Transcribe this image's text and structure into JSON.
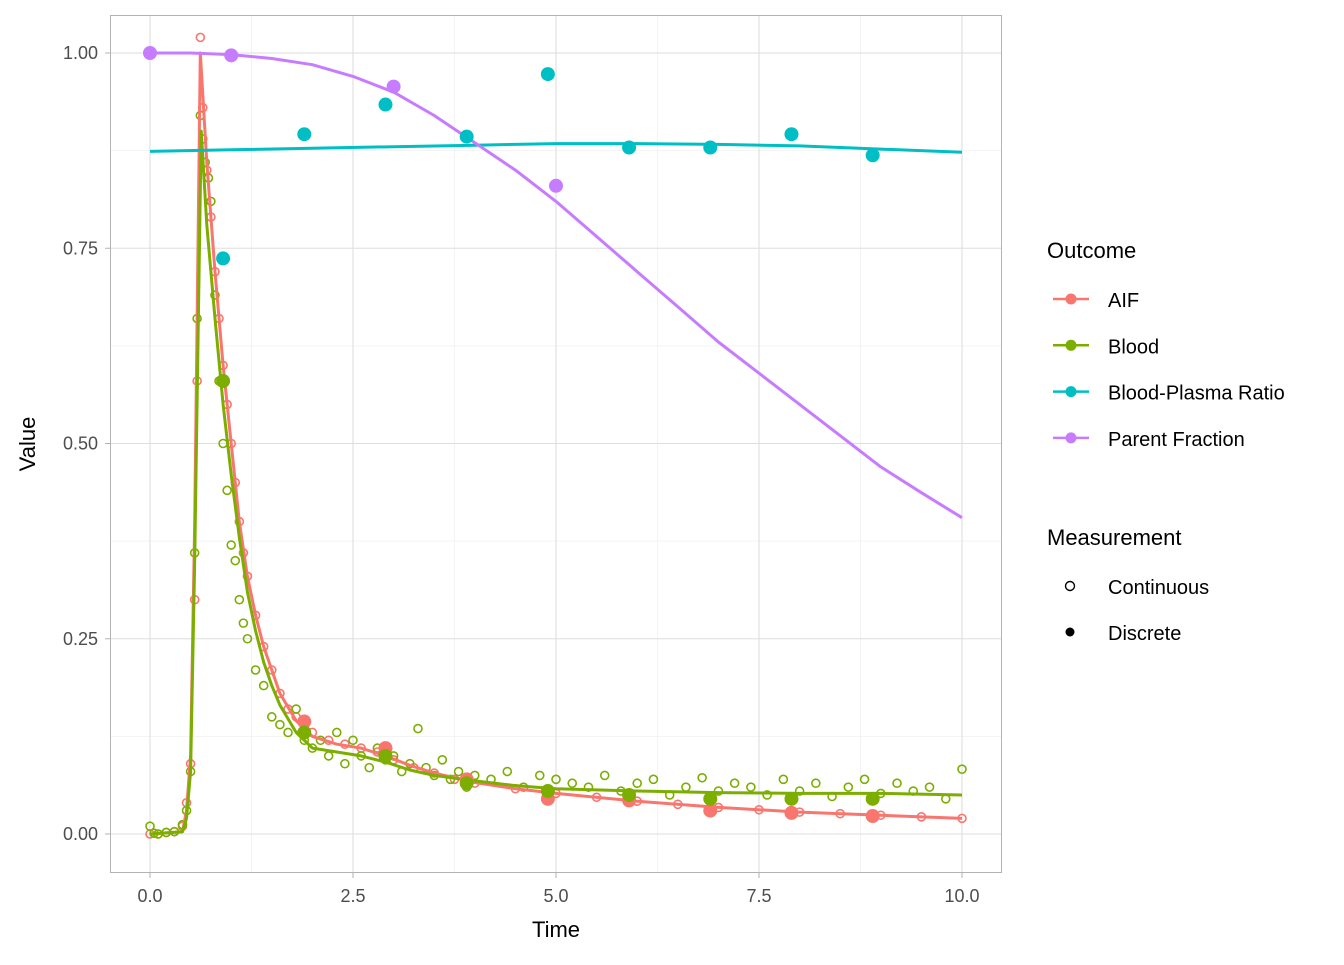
{
  "chart_data": {
    "type": "scatter",
    "xlabel": "Time",
    "ylabel": "Value",
    "xlim": [
      -0.5,
      10.5
    ],
    "ylim": [
      -0.05,
      1.05
    ],
    "grid": true,
    "x_ticks": [
      0,
      2.5,
      5,
      7.5,
      10
    ],
    "x_tick_labels": [
      "0.0",
      "2.5",
      "5.0",
      "7.5",
      "10.0"
    ],
    "y_ticks": [
      0,
      0.25,
      0.5,
      0.75,
      1
    ],
    "y_tick_labels": [
      "0.00",
      "0.25",
      "0.50",
      "0.75",
      "1.00"
    ],
    "legend_position": "right",
    "legend": {
      "outcome_title": "Outcome",
      "outcome_items": [
        "AIF",
        "Blood",
        "Blood-Plasma Ratio",
        "Parent Fraction"
      ],
      "measurement_title": "Measurement",
      "measurement_items": [
        "Continuous",
        "Discrete"
      ]
    },
    "colors": {
      "AIF": "#F8766D",
      "Blood": "#7CAE00",
      "Blood-Plasma Ratio": "#00BFC4",
      "Parent Fraction": "#C77CFF"
    },
    "series": [
      {
        "name": "AIF",
        "measurement": "Continuous",
        "x": [
          0,
          0.1,
          0.2,
          0.3,
          0.4,
          0.45,
          0.5,
          0.55,
          0.58,
          0.62,
          0.65,
          0.7,
          0.75,
          0.8,
          0.85,
          0.9,
          0.95,
          1.0,
          1.05,
          1.1,
          1.15,
          1.2,
          1.3,
          1.4,
          1.5,
          1.6,
          1.7,
          1.8,
          2.0,
          2.2,
          2.4,
          2.6,
          2.8,
          3.0,
          3.25,
          3.5,
          3.75,
          4,
          4.5,
          5,
          5.5,
          6,
          6.5,
          7,
          7.5,
          8,
          8.5,
          9,
          9.5,
          10
        ],
        "y": [
          0,
          0,
          0.002,
          0.003,
          0.01,
          0.04,
          0.09,
          0.3,
          0.58,
          1.02,
          0.93,
          0.85,
          0.79,
          0.72,
          0.66,
          0.6,
          0.55,
          0.5,
          0.45,
          0.4,
          0.36,
          0.33,
          0.28,
          0.24,
          0.21,
          0.18,
          0.16,
          0.15,
          0.13,
          0.12,
          0.115,
          0.11,
          0.105,
          0.095,
          0.085,
          0.078,
          0.07,
          0.065,
          0.058,
          0.052,
          0.047,
          0.042,
          0.038,
          0.034,
          0.031,
          0.028,
          0.026,
          0.024,
          0.022,
          0.02
        ]
      },
      {
        "name": "Blood",
        "measurement": "Continuous",
        "x": [
          0,
          0.05,
          0.1,
          0.2,
          0.3,
          0.4,
          0.45,
          0.5,
          0.55,
          0.58,
          0.62,
          0.65,
          0.68,
          0.72,
          0.75,
          0.8,
          0.85,
          0.9,
          0.95,
          1.0,
          1.05,
          1.1,
          1.15,
          1.2,
          1.3,
          1.4,
          1.5,
          1.6,
          1.7,
          1.8,
          1.9,
          2.0,
          2.1,
          2.2,
          2.3,
          2.4,
          2.5,
          2.6,
          2.7,
          2.8,
          2.9,
          3.0,
          3.1,
          3.2,
          3.3,
          3.4,
          3.5,
          3.6,
          3.7,
          3.8,
          3.9,
          4.0,
          4.2,
          4.4,
          4.6,
          4.8,
          5.0,
          5.2,
          5.4,
          5.6,
          5.8,
          6.0,
          6.2,
          6.4,
          6.6,
          6.8,
          7.0,
          7.2,
          7.4,
          7.6,
          7.8,
          8.0,
          8.2,
          8.4,
          8.6,
          8.8,
          9.0,
          9.2,
          9.4,
          9.6,
          9.8,
          10.0
        ],
        "y": [
          0.01,
          0.001,
          0.0,
          0.002,
          0.003,
          0.012,
          0.03,
          0.08,
          0.36,
          0.66,
          0.92,
          0.89,
          0.86,
          0.84,
          0.81,
          0.69,
          0.58,
          0.5,
          0.44,
          0.37,
          0.35,
          0.3,
          0.27,
          0.25,
          0.21,
          0.19,
          0.15,
          0.14,
          0.13,
          0.16,
          0.12,
          0.11,
          0.12,
          0.1,
          0.13,
          0.09,
          0.12,
          0.1,
          0.085,
          0.11,
          0.095,
          0.1,
          0.08,
          0.09,
          0.135,
          0.085,
          0.075,
          0.095,
          0.07,
          0.08,
          0.06,
          0.075,
          0.07,
          0.08,
          0.06,
          0.075,
          0.07,
          0.065,
          0.06,
          0.075,
          0.055,
          0.065,
          0.07,
          0.05,
          0.06,
          0.072,
          0.055,
          0.065,
          0.06,
          0.05,
          0.07,
          0.055,
          0.065,
          0.048,
          0.06,
          0.07,
          0.052,
          0.065,
          0.055,
          0.06,
          0.045,
          0.083
        ]
      },
      {
        "name": "AIF",
        "measurement": "Discrete",
        "x": [
          1.9,
          2.9,
          3.9,
          4.9,
          5.9,
          6.9,
          7.9,
          8.9
        ],
        "y": [
          0.144,
          0.11,
          0.07,
          0.045,
          0.043,
          0.03,
          0.027,
          0.023
        ]
      },
      {
        "name": "Blood",
        "measurement": "Discrete",
        "x": [
          0.9,
          1.9,
          2.9,
          3.9,
          4.9,
          5.9,
          6.9,
          7.9,
          8.9
        ],
        "y": [
          0.58,
          0.13,
          0.1,
          0.065,
          0.055,
          0.05,
          0.045,
          0.045,
          0.045
        ]
      },
      {
        "name": "Blood-Plasma Ratio",
        "measurement": "Discrete",
        "x": [
          0.9,
          1.9,
          2.9,
          3.9,
          4.9,
          5.9,
          6.9,
          7.9,
          8.9
        ],
        "y": [
          0.737,
          0.896,
          0.934,
          0.893,
          0.973,
          0.879,
          0.879,
          0.896,
          0.869
        ]
      },
      {
        "name": "Parent Fraction",
        "measurement": "Discrete",
        "x": [
          0,
          1,
          3,
          5
        ],
        "y": [
          1.0,
          0.997,
          0.957,
          0.83
        ]
      }
    ],
    "fits": [
      {
        "name": "AIF",
        "x": [
          0,
          0.4,
          0.45,
          0.5,
          0.55,
          0.62,
          0.7,
          0.8,
          0.9,
          1.0,
          1.1,
          1.2,
          1.3,
          1.4,
          1.5,
          1.6,
          1.8,
          2.0,
          2.3,
          2.6,
          2.9,
          3.2,
          3.5,
          4,
          4.5,
          5,
          6,
          7,
          8,
          9,
          10
        ],
        "y": [
          0,
          0.003,
          0.03,
          0.1,
          0.4,
          1.0,
          0.86,
          0.72,
          0.6,
          0.5,
          0.4,
          0.33,
          0.28,
          0.24,
          0.21,
          0.18,
          0.145,
          0.125,
          0.115,
          0.11,
          0.1,
          0.088,
          0.078,
          0.066,
          0.058,
          0.052,
          0.042,
          0.034,
          0.028,
          0.024,
          0.02
        ]
      },
      {
        "name": "Blood",
        "x": [
          0,
          0.4,
          0.45,
          0.5,
          0.55,
          0.63,
          0.7,
          0.8,
          0.9,
          1.0,
          1.1,
          1.2,
          1.3,
          1.4,
          1.5,
          1.6,
          1.8,
          2.0,
          2.3,
          2.6,
          2.9,
          3.2,
          3.5,
          4,
          4.5,
          5,
          6,
          7,
          8,
          9,
          10
        ],
        "y": [
          0,
          0.003,
          0.02,
          0.08,
          0.35,
          0.9,
          0.78,
          0.66,
          0.55,
          0.46,
          0.38,
          0.31,
          0.26,
          0.22,
          0.19,
          0.165,
          0.13,
          0.11,
          0.105,
          0.1,
          0.092,
          0.082,
          0.075,
          0.068,
          0.062,
          0.058,
          0.055,
          0.053,
          0.052,
          0.052,
          0.05
        ]
      },
      {
        "name": "Blood-Plasma Ratio",
        "x": [
          0,
          1,
          2,
          3,
          4,
          5,
          5.5,
          6,
          7,
          8,
          9,
          10
        ],
        "y": [
          0.874,
          0.876,
          0.878,
          0.88,
          0.882,
          0.884,
          0.884,
          0.884,
          0.883,
          0.881,
          0.877,
          0.873
        ]
      },
      {
        "name": "Parent Fraction",
        "x": [
          0,
          0.5,
          1,
          1.5,
          2,
          2.5,
          3,
          3.5,
          4,
          4.5,
          5,
          5.5,
          6,
          6.5,
          7,
          7.5,
          8,
          8.5,
          9,
          9.5,
          10
        ],
        "y": [
          1,
          1,
          0.998,
          0.993,
          0.985,
          0.97,
          0.95,
          0.92,
          0.885,
          0.85,
          0.81,
          0.765,
          0.72,
          0.675,
          0.63,
          0.59,
          0.55,
          0.51,
          0.47,
          0.437,
          0.405
        ]
      }
    ]
  }
}
